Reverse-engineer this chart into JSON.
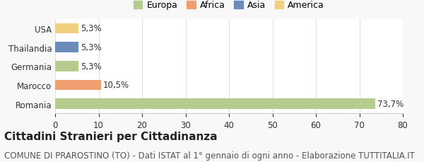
{
  "categories": [
    "Romania",
    "Marocco",
    "Germania",
    "Thailandia",
    "USA"
  ],
  "values": [
    73.7,
    10.5,
    5.3,
    5.3,
    5.3
  ],
  "labels": [
    "73,7%",
    "10,5%",
    "5,3%",
    "5,3%",
    "5,3%"
  ],
  "colors": [
    "#b5cc8e",
    "#f0a070",
    "#b5cc8e",
    "#6b8cba",
    "#f0d080"
  ],
  "legend_items": [
    {
      "label": "Europa",
      "color": "#b5cc8e"
    },
    {
      "label": "Africa",
      "color": "#f0a070"
    },
    {
      "label": "Asia",
      "color": "#6b8cba"
    },
    {
      "label": "America",
      "color": "#f0d080"
    }
  ],
  "xlim": [
    0,
    80
  ],
  "xticks": [
    0,
    10,
    20,
    30,
    40,
    50,
    60,
    70,
    80
  ],
  "title": "Cittadini Stranieri per Cittadinanza",
  "subtitle": "COMUNE DI PRAROSTINO (TO) - Dati ISTAT al 1° gennaio di ogni anno - Elaborazione TUTTITALIA.IT",
  "background_color": "#f8f8f8",
  "plot_background": "#ffffff",
  "title_fontsize": 11,
  "subtitle_fontsize": 8.5,
  "label_fontsize": 8.5,
  "tick_fontsize": 8.5,
  "legend_fontsize": 9
}
